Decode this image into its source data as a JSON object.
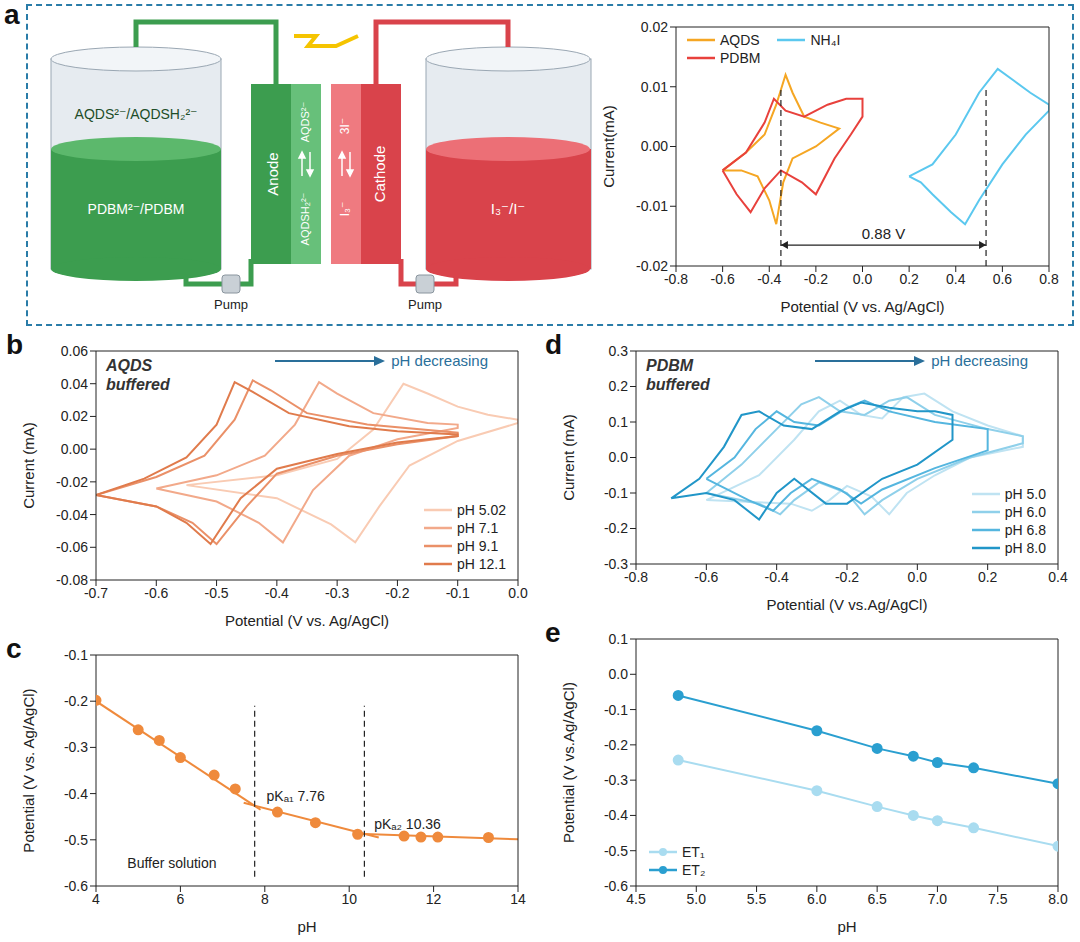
{
  "schematic": {
    "anolyte": [
      "AQDS²⁻/AQDSH₂²⁻",
      "PDBM²⁻/PDBM"
    ],
    "anode": "Anode",
    "anode_reaction": [
      "AQDS²⁻",
      "AQDSH₂²⁻"
    ],
    "cathode": "Cathode",
    "cathode_reaction": [
      "3I⁻",
      "I₃⁻"
    ],
    "catholyte": "I₃⁻/I⁻",
    "pumps": [
      "Pump",
      "Pump"
    ]
  },
  "chart_data": [
    {
      "panel": "a",
      "type": "line",
      "x_label": "Potential (V vs. Ag/AgCl)",
      "y_label": "Current(mA)",
      "xlim": [
        -0.8,
        0.8
      ],
      "xticks": [
        -0.8,
        -0.6,
        -0.4,
        -0.2,
        {
          "value": 0,
          "label": "0.0"
        },
        0.2,
        0.4,
        0.6,
        0.8
      ],
      "ylim": [
        -0.02,
        0.02
      ],
      "yticks": [
        -0.02,
        -0.01,
        {
          "value": 0,
          "label": "0.00"
        },
        0.01,
        0.02
      ],
      "legend": "upper left",
      "series": [
        {
          "name": "AQDS",
          "color": "#f5a623",
          "line_style": "solid",
          "marker": "none",
          "x": [
            -0.6,
            -0.5,
            -0.42,
            -0.37,
            -0.33,
            -0.3,
            -0.25,
            -0.18,
            -0.1,
            -0.1,
            -0.2,
            -0.3,
            -0.34,
            -0.37,
            -0.4,
            -0.45,
            -0.52,
            -0.6
          ],
          "values": [
            -0.004,
            -0.001,
            0.002,
            0.007,
            0.012,
            0.009,
            0.005,
            0.004,
            0.003,
            0.003,
            0.0,
            -0.002,
            -0.006,
            -0.013,
            -0.009,
            -0.005,
            -0.004,
            -0.004
          ]
        },
        {
          "name": "PDBM",
          "color": "#e8413c",
          "line_style": "solid",
          "marker": "none",
          "x": [
            -0.6,
            -0.5,
            -0.42,
            -0.38,
            -0.33,
            -0.25,
            -0.15,
            -0.07,
            0,
            0,
            -0.05,
            -0.12,
            -0.2,
            -0.26,
            -0.35,
            -0.42,
            -0.48,
            -0.54,
            -0.6
          ],
          "values": [
            -0.004,
            -0.001,
            0.004,
            0.008,
            0.006,
            0.005,
            0.007,
            0.008,
            0.008,
            0.005,
            0.002,
            -0.002,
            -0.008,
            -0.006,
            -0.004,
            -0.007,
            -0.011,
            -0.008,
            -0.004
          ]
        },
        {
          "name": "NH₄I",
          "color": "#5bc8ef",
          "line_style": "solid",
          "marker": "none",
          "x": [
            0.2,
            0.3,
            0.4,
            0.5,
            0.58,
            0.65,
            0.72,
            0.8,
            0.8,
            0.7,
            0.6,
            0.5,
            0.44,
            0.38,
            0.3,
            0.25,
            0.2
          ],
          "values": [
            -0.005,
            -0.003,
            0.002,
            0.009,
            0.013,
            0.011,
            0.009,
            0.007,
            0.006,
            0.002,
            -0.003,
            -0.009,
            -0.013,
            -0.011,
            -0.008,
            -0.006,
            -0.005
          ]
        }
      ],
      "reference_lines": [
        {
          "x": -0.35,
          "y1": -0.02,
          "y2": 0.01
        },
        {
          "x": 0.53,
          "y1": -0.02,
          "y2": 0.01
        }
      ],
      "arrows": [
        {
          "text": "0.88 V",
          "x1": -0.35,
          "x2": 0.53,
          "y": -0.0165
        }
      ]
    },
    {
      "panel": "b",
      "type": "line",
      "x_label": "Potential (V vs. Ag/AgCl)",
      "y_label": "Current (mA)",
      "xlim": [
        -0.7,
        0.0
      ],
      "xticks": [
        -0.7,
        -0.6,
        -0.5,
        -0.4,
        -0.3,
        -0.2,
        -0.1,
        {
          "value": 0,
          "label": "0.0"
        }
      ],
      "ylim": [
        -0.08,
        0.06
      ],
      "yticks": [
        -0.08,
        -0.06,
        -0.04,
        -0.02,
        {
          "value": 0,
          "label": "0.00"
        },
        0.02,
        0.04,
        0.06
      ],
      "legend": "lower right",
      "corner_text": "AQDS buffered",
      "trend_label": "pH decreasing",
      "series": [
        {
          "name": "pH 5.02",
          "color": "#f9cbb3",
          "line_style": "solid",
          "marker": "none",
          "x": [
            -0.55,
            -0.4,
            -0.3,
            -0.24,
            -0.19,
            -0.15,
            -0.1,
            -0.05,
            0.0,
            0.0,
            -0.1,
            -0.18,
            -0.23,
            -0.27,
            -0.31,
            -0.4,
            -0.55
          ],
          "values": [
            -0.022,
            -0.016,
            -0.006,
            0.012,
            0.04,
            0.034,
            0.026,
            0.021,
            0.018,
            0.016,
            0.005,
            -0.01,
            -0.035,
            -0.057,
            -0.046,
            -0.03,
            -0.022
          ]
        },
        {
          "name": "pH 7.1",
          "color": "#f2a98a",
          "line_style": "solid",
          "marker": "none",
          "x": [
            -0.6,
            -0.5,
            -0.42,
            -0.37,
            -0.33,
            -0.3,
            -0.24,
            -0.15,
            -0.1,
            -0.1,
            -0.2,
            -0.28,
            -0.34,
            -0.39,
            -0.43,
            -0.5,
            -0.6
          ],
          "values": [
            -0.024,
            -0.016,
            -0.004,
            0.015,
            0.041,
            0.034,
            0.022,
            0.016,
            0.015,
            0.013,
            0.006,
            -0.004,
            -0.025,
            -0.057,
            -0.045,
            -0.032,
            -0.024
          ]
        },
        {
          "name": "pH 9.1",
          "color": "#ea9068",
          "line_style": "solid",
          "marker": "none",
          "x": [
            -0.7,
            -0.6,
            -0.52,
            -0.47,
            -0.44,
            -0.41,
            -0.35,
            -0.25,
            -0.1,
            -0.1,
            -0.2,
            -0.3,
            -0.4,
            -0.45,
            -0.5,
            -0.54,
            -0.6,
            -0.7
          ],
          "values": [
            -0.028,
            -0.017,
            -0.004,
            0.018,
            0.042,
            0.036,
            0.022,
            0.015,
            0.01,
            0.008,
            0.003,
            -0.004,
            -0.015,
            -0.035,
            -0.058,
            -0.045,
            -0.035,
            -0.028
          ]
        },
        {
          "name": "pH 12.1",
          "color": "#e07b4c",
          "line_style": "solid",
          "marker": "none",
          "x": [
            -0.7,
            -0.62,
            -0.55,
            -0.5,
            -0.47,
            -0.44,
            -0.38,
            -0.28,
            -0.2,
            -0.1,
            -0.1,
            -0.2,
            -0.3,
            -0.4,
            -0.46,
            -0.51,
            -0.55,
            -0.6,
            -0.7
          ],
          "values": [
            -0.028,
            -0.018,
            -0.005,
            0.015,
            0.041,
            0.035,
            0.022,
            0.014,
            0.011,
            0.009,
            0.008,
            0.004,
            -0.003,
            -0.012,
            -0.03,
            -0.058,
            -0.045,
            -0.035,
            -0.028
          ]
        }
      ]
    },
    {
      "panel": "c",
      "type": "scatter",
      "x_label": "pH",
      "y_label": "Potential (V vs. Ag/AgCl)",
      "xlim": [
        4,
        14
      ],
      "xticks": [
        4,
        6,
        8,
        10,
        12,
        14
      ],
      "ylim": [
        -0.6,
        -0.1
      ],
      "yticks": [
        -0.6,
        -0.5,
        -0.4,
        -0.3,
        -0.2,
        -0.1
      ],
      "series": [
        {
          "type": "line",
          "color": "#ef8a3c",
          "line_style": "solid",
          "marker": "none",
          "x": [
            4,
            7.9
          ],
          "values": [
            -0.2,
            -0.435
          ]
        },
        {
          "type": "line",
          "color": "#ef8a3c",
          "line_style": "solid",
          "marker": "none",
          "x": [
            7.5,
            10.7
          ],
          "values": [
            -0.42,
            -0.495
          ]
        },
        {
          "type": "line",
          "color": "#ef8a3c",
          "line_style": "solid",
          "marker": "none",
          "x": [
            10.2,
            14
          ],
          "values": [
            -0.487,
            -0.499
          ]
        },
        {
          "type": "scatter",
          "color": "#ef8a3c",
          "line_style": "none",
          "marker": "circle",
          "x": [
            4,
            5,
            5.5,
            6,
            6.8,
            7.3,
            8.3,
            9.2,
            10.2,
            11.3,
            11.7,
            12.1,
            13.3
          ],
          "values": [
            -0.198,
            -0.262,
            -0.285,
            -0.322,
            -0.36,
            -0.39,
            -0.44,
            -0.463,
            -0.488,
            -0.492,
            -0.494,
            -0.494,
            -0.495
          ]
        }
      ],
      "reference_lines": [
        {
          "x": 7.76,
          "y1": -0.58,
          "y2": -0.21
        },
        {
          "x": 10.36,
          "y1": -0.58,
          "y2": -0.21
        }
      ],
      "annotations": [
        {
          "text": "pKₐ₁ 7.76",
          "x": 7.9,
          "y": -0.405
        },
        {
          "text": "pKₐ₂ 10.36",
          "x": 10.45,
          "y": -0.465
        },
        {
          "text": "Buffer solution",
          "x": 4.6,
          "y": -0.55
        }
      ]
    },
    {
      "panel": "d",
      "type": "line",
      "x_label": "Potential (V vs.Ag/AgCl)",
      "y_label": "Current (mA)",
      "xlim": [
        -0.8,
        0.4
      ],
      "xticks": [
        -0.8,
        -0.6,
        -0.4,
        -0.2,
        {
          "value": 0,
          "label": "0.0"
        },
        0.2,
        0.4
      ],
      "ylim": [
        -0.3,
        0.3
      ],
      "yticks": [
        -0.3,
        -0.2,
        -0.1,
        {
          "value": 0,
          "label": "0.0"
        },
        0.1,
        0.2,
        0.3
      ],
      "legend": "lower right",
      "corner_text": "PDBM buffered",
      "trend_label": "pH decreasing",
      "series": [
        {
          "name": "pH 5.0",
          "color": "#bfe3f2",
          "line_style": "solid",
          "marker": "none",
          "x": [
            -0.6,
            -0.45,
            -0.35,
            -0.28,
            -0.22,
            -0.16,
            -0.1,
            -0.04,
            0.02,
            0.1,
            0.2,
            0.3,
            0.3,
            0.15,
            0.05,
            -0.03,
            -0.08,
            -0.13,
            -0.2,
            -0.25,
            -0.3,
            -0.36,
            -0.6
          ],
          "values": [
            -0.12,
            -0.05,
            0.05,
            0.13,
            0.16,
            0.12,
            0.11,
            0.17,
            0.18,
            0.13,
            0.09,
            0.06,
            0.03,
            0.0,
            -0.05,
            -0.1,
            -0.16,
            -0.11,
            -0.08,
            -0.12,
            -0.15,
            -0.13,
            -0.12
          ]
        },
        {
          "name": "pH 6.0",
          "color": "#8fd0ea",
          "line_style": "solid",
          "marker": "none",
          "x": [
            -0.6,
            -0.5,
            -0.4,
            -0.33,
            -0.28,
            -0.22,
            -0.15,
            -0.08,
            -0.03,
            0.05,
            0.2,
            0.3,
            0.3,
            0.15,
            0.0,
            -0.1,
            -0.15,
            -0.2,
            -0.28,
            -0.35,
            -0.39,
            -0.45,
            -0.6
          ],
          "values": [
            -0.1,
            -0.02,
            0.08,
            0.15,
            0.17,
            0.13,
            0.12,
            0.16,
            0.17,
            0.12,
            0.08,
            0.06,
            0.04,
            0.0,
            -0.06,
            -0.12,
            -0.16,
            -0.1,
            -0.07,
            -0.12,
            -0.16,
            -0.13,
            -0.1
          ]
        },
        {
          "name": "pH 6.8",
          "color": "#55b6df",
          "line_style": "solid",
          "marker": "none",
          "x": [
            -0.6,
            -0.52,
            -0.46,
            -0.4,
            -0.35,
            -0.28,
            -0.2,
            -0.15,
            -0.08,
            0.05,
            0.2,
            0.2,
            0.05,
            -0.1,
            -0.16,
            -0.22,
            -0.3,
            -0.36,
            -0.41,
            -0.48,
            -0.6
          ],
          "values": [
            -0.06,
            0.0,
            0.08,
            0.13,
            0.1,
            0.09,
            0.14,
            0.16,
            0.13,
            0.1,
            0.08,
            0.02,
            -0.03,
            -0.09,
            -0.13,
            -0.09,
            -0.06,
            -0.1,
            -0.15,
            -0.12,
            -0.06
          ]
        },
        {
          "name": "pH 8.0",
          "color": "#2196c8",
          "line_style": "solid",
          "marker": "none",
          "x": [
            -0.7,
            -0.62,
            -0.55,
            -0.5,
            -0.45,
            -0.38,
            -0.3,
            -0.22,
            -0.16,
            -0.08,
            0.0,
            0.05,
            0.1,
            0.1,
            0.0,
            -0.1,
            -0.2,
            -0.26,
            -0.35,
            -0.4,
            -0.45,
            -0.52,
            -0.6,
            -0.7
          ],
          "values": [
            -0.115,
            -0.06,
            0.03,
            0.12,
            0.13,
            0.09,
            0.08,
            0.13,
            0.155,
            0.14,
            0.13,
            0.13,
            0.12,
            0.05,
            -0.02,
            -0.06,
            -0.13,
            -0.13,
            -0.06,
            -0.1,
            -0.175,
            -0.12,
            -0.1,
            -0.115
          ]
        }
      ]
    },
    {
      "panel": "e",
      "type": "line",
      "x_label": "pH",
      "y_label": "Potential (V vs.Ag/AgCl)",
      "xlim": [
        4.5,
        8.0
      ],
      "xticks": [
        4.5,
        {
          "value": 5,
          "label": "5.0"
        },
        5.5,
        {
          "value": 6,
          "label": "6.0"
        },
        6.5,
        {
          "value": 7,
          "label": "7.0"
        },
        7.5,
        {
          "value": 8,
          "label": "8.0"
        }
      ],
      "ylim": [
        -0.6,
        0.1
      ],
      "yticks": [
        -0.6,
        -0.5,
        -0.4,
        -0.3,
        -0.2,
        -0.1,
        {
          "value": 0,
          "label": "0.0"
        },
        0.1
      ],
      "legend": "lower left",
      "series": [
        {
          "name": "ET₁",
          "color": "#a9dcf0",
          "line_style": "solid",
          "marker": "circle",
          "x": [
            4.85,
            6,
            6.5,
            6.8,
            7,
            7.3,
            8
          ],
          "values": [
            -0.243,
            -0.33,
            -0.375,
            -0.4,
            -0.415,
            -0.435,
            -0.487
          ]
        },
        {
          "name": "ET₂",
          "color": "#2a9fd0",
          "line_style": "solid",
          "marker": "circle",
          "x": [
            4.85,
            6,
            6.5,
            6.8,
            7,
            7.3,
            8
          ],
          "values": [
            -0.06,
            -0.16,
            -0.21,
            -0.232,
            -0.25,
            -0.265,
            -0.31
          ]
        }
      ]
    }
  ]
}
